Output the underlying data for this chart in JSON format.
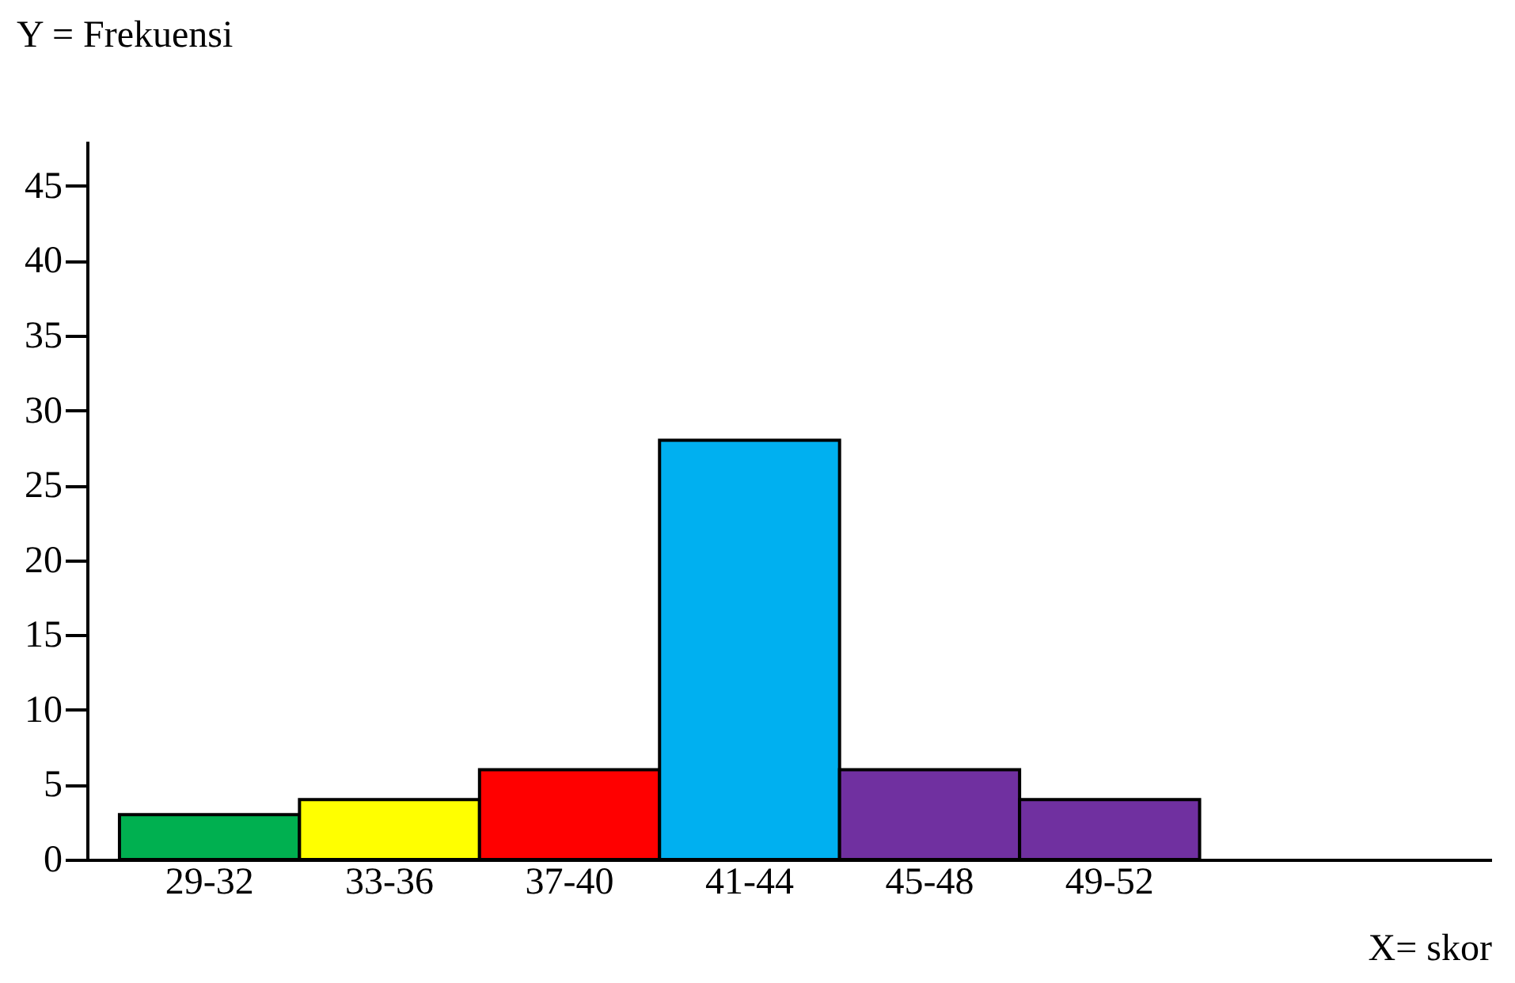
{
  "chart_data": {
    "type": "bar",
    "xlabel": "X= skor",
    "ylabel": "Y = Frekuensi",
    "categories": [
      "29-32",
      "33-36",
      "37-40",
      "41-44",
      "45-48",
      "49-52"
    ],
    "values": [
      3,
      4,
      6,
      28,
      6,
      4
    ],
    "colors": [
      "#00b050",
      "#ffff00",
      "#ff0000",
      "#00b0f0",
      "#7030a0",
      "#7030a0"
    ],
    "ylim": [
      0,
      48
    ],
    "yticks": [
      0,
      5,
      10,
      15,
      20,
      25,
      30,
      35,
      40,
      45
    ],
    "grid": false
  }
}
